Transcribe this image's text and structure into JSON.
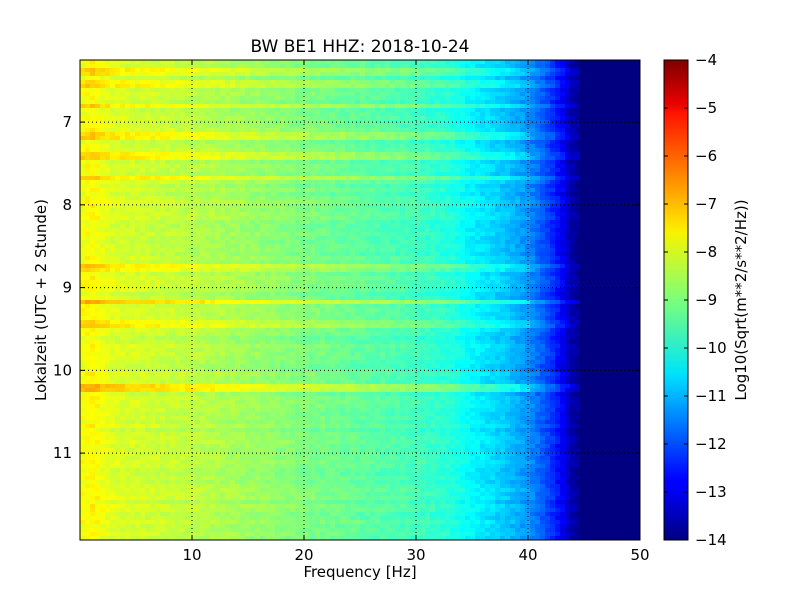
{
  "chart_data": {
    "type": "heatmap",
    "title": "BW BE1 HHZ: 2018-10-24",
    "xlabel": "Frequency [Hz]",
    "ylabel": "Lokalzeit (UTC + 2 Stunde)",
    "xlim": [
      0,
      50
    ],
    "ylim": [
      6.25,
      12.05
    ],
    "y_inverted": true,
    "x_ticks": [
      10,
      20,
      30,
      40,
      50
    ],
    "y_ticks": [
      7,
      8,
      9,
      10,
      11
    ],
    "grid": true,
    "colormap": "jet",
    "colorbar": {
      "label": "Log10(Sqrt(m**2/s**2/Hz))",
      "range": [
        -14,
        -4
      ],
      "ticks": [
        -4,
        -5,
        -6,
        -7,
        -8,
        -9,
        -10,
        -11,
        -12,
        -13,
        -14
      ]
    },
    "spectrum_profile": {
      "frequency_hz": [
        0,
        1,
        3,
        10,
        15,
        20,
        25,
        30,
        33,
        35,
        38,
        40,
        42,
        43,
        44,
        45,
        50
      ],
      "log10_psd": [
        -7.9,
        -7.7,
        -8.1,
        -8.4,
        -8.7,
        -9.0,
        -9.3,
        -9.6,
        -9.9,
        -10.3,
        -10.8,
        -11.3,
        -12.2,
        -12.8,
        -13.6,
        -14,
        -14
      ]
    },
    "bright_lines_hour": [
      6.15,
      6.38,
      6.52,
      6.78,
      7.15,
      7.4,
      7.65,
      8.75,
      9.15,
      9.4,
      10.18
    ],
    "strongest_lines_hour": [
      9.15,
      10.18
    ],
    "colors": {
      "axis": "#000000",
      "background": "#ffffff",
      "grid": "#000000"
    }
  }
}
